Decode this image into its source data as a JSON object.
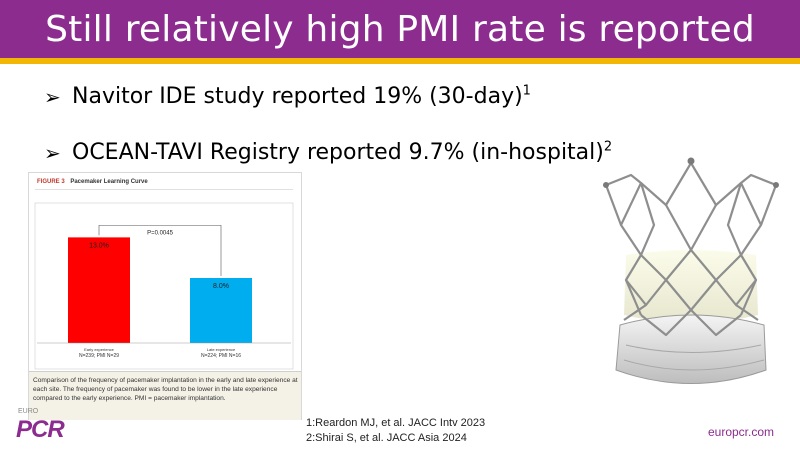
{
  "slide": {
    "title": "Still relatively high PMI rate is reported",
    "colors": {
      "title_bar": "#8b2c8e",
      "accent_rule": "#f2b705"
    }
  },
  "bullets": [
    {
      "arrow": "➢",
      "text": "Navitor IDE study reported 19% (30-day)",
      "sup": "1"
    },
    {
      "arrow": "➢",
      "text": "OCEAN-TAVI Registry reported 9.7% (in-hospital)",
      "sup": "2"
    }
  ],
  "figure": {
    "label": "FIGURE 3",
    "name": "Pacemaker Learning Curve",
    "caption": "Comparison of the frequency of pacemaker implantation in the early and late experience at each site. The frequency of pacemaker was found to be lower in the late experience compared to the early experience. PMI = pacemaker implantation."
  },
  "chart_data": {
    "type": "bar",
    "categories": [
      "Early experience",
      "Late experience"
    ],
    "sublabels": [
      "N=239; PMI N=29",
      "N=224; PMI N=16"
    ],
    "values": [
      13.0,
      8.0
    ],
    "value_labels": [
      "13.0%",
      "8.0%"
    ],
    "colors": [
      "#ff0000",
      "#00adef"
    ],
    "annotation": "P=0.0045",
    "ylim": [
      0,
      16
    ],
    "title": "",
    "xlabel": "",
    "ylabel": ""
  },
  "logo": {
    "small": "EURO",
    "main": "PCR"
  },
  "references": [
    "1:Reardon MJ, et al. JACC Intv 2023",
    "2:Shirai S, et al. JACC Asia 2024"
  ],
  "website": "europcr.com"
}
